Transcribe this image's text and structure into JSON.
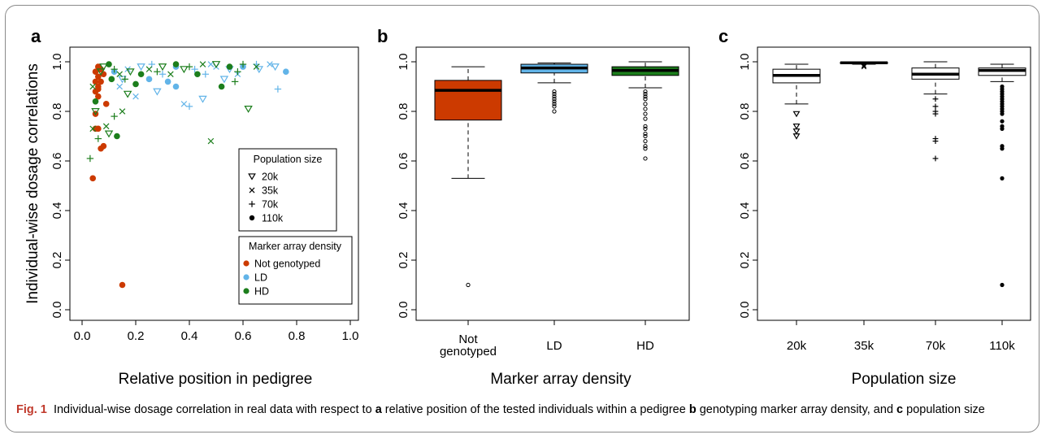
{
  "caption": {
    "label": "Fig. 1",
    "t0": "Individual-wise dosage correlation in real data with respect to ",
    "l1": "a",
    "t1": " relative position of the tested individuals within a pedigree ",
    "l2": "b",
    "t2": " genotyping marker array density, and ",
    "l3": "c",
    "t3": " population size"
  },
  "colors": {
    "not_genotyped": "#cc3a00",
    "ld": "#62b4e8",
    "hd": "#1c7e1c",
    "caption_label": "#c0392b"
  },
  "chart_data": [
    {
      "panel": "a",
      "type": "scatter",
      "xlabel": "Relative position in pedigree",
      "ylabel": "Individual-wise dosage correlations",
      "xlim": [
        0,
        1.0
      ],
      "ylim": [
        0,
        1.0
      ],
      "xticks": [
        "0.0",
        "0.2",
        "0.4",
        "0.6",
        "0.8",
        "1.0"
      ],
      "yticks": [
        "0.0",
        "0.2",
        "0.4",
        "0.6",
        "0.8",
        "1.0"
      ],
      "legend_population": {
        "title": "Population size",
        "entries": [
          {
            "label": "20k",
            "marker": "triangle"
          },
          {
            "label": "35k",
            "marker": "x"
          },
          {
            "label": "70k",
            "marker": "plus"
          },
          {
            "label": "110k",
            "marker": "dot"
          }
        ]
      },
      "legend_density": {
        "title": "Marker array density",
        "entries": [
          {
            "label": "Not genotyped",
            "color": "#cc3a00"
          },
          {
            "label": "LD",
            "color": "#62b4e8"
          },
          {
            "label": "HD",
            "color": "#1c7e1c"
          }
        ]
      },
      "series": [
        {
          "density": "Not genotyped",
          "points": [
            [
              0.15,
              0.1
            ],
            [
              0.04,
              0.53
            ],
            [
              0.05,
              0.73
            ],
            [
              0.06,
              0.73
            ],
            [
              0.07,
              0.65
            ],
            [
              0.08,
              0.66
            ],
            [
              0.05,
              0.79
            ],
            [
              0.09,
              0.83
            ],
            [
              0.06,
              0.86
            ],
            [
              0.05,
              0.88
            ],
            [
              0.06,
              0.9
            ],
            [
              0.07,
              0.92
            ],
            [
              0.06,
              0.94
            ],
            [
              0.05,
              0.96
            ],
            [
              0.07,
              0.97
            ],
            [
              0.06,
              0.98
            ],
            [
              0.08,
              0.95
            ],
            [
              0.05,
              0.92
            ],
            [
              0.06,
              0.89
            ]
          ]
        },
        {
          "density": "LD",
          "points": [
            [
              0.2,
              0.86
            ],
            [
              0.28,
              0.88
            ],
            [
              0.35,
              0.9
            ],
            [
              0.4,
              0.82
            ],
            [
              0.38,
              0.83
            ],
            [
              0.45,
              0.85
            ],
            [
              0.25,
              0.93
            ],
            [
              0.3,
              0.95
            ],
            [
              0.17,
              0.97
            ],
            [
              0.22,
              0.98
            ],
            [
              0.35,
              0.98
            ],
            [
              0.42,
              0.97
            ],
            [
              0.5,
              0.98
            ],
            [
              0.55,
              0.97
            ],
            [
              0.6,
              0.98
            ],
            [
              0.65,
              0.99
            ],
            [
              0.7,
              0.99
            ],
            [
              0.72,
              0.98
            ],
            [
              0.76,
              0.96
            ],
            [
              0.73,
              0.89
            ],
            [
              0.14,
              0.9
            ],
            [
              0.15,
              0.93
            ],
            [
              0.32,
              0.92
            ],
            [
              0.46,
              0.95
            ],
            [
              0.58,
              0.95
            ],
            [
              0.66,
              0.97
            ],
            [
              0.12,
              0.96
            ],
            [
              0.26,
              0.99
            ],
            [
              0.48,
              0.99
            ],
            [
              0.53,
              0.93
            ]
          ]
        },
        {
          "density": "HD",
          "points": [
            [
              0.03,
              0.61
            ],
            [
              0.04,
              0.73
            ],
            [
              0.05,
              0.8
            ],
            [
              0.05,
              0.84
            ],
            [
              0.06,
              0.69
            ],
            [
              0.09,
              0.74
            ],
            [
              0.1,
              0.71
            ],
            [
              0.13,
              0.7
            ],
            [
              0.12,
              0.78
            ],
            [
              0.15,
              0.8
            ],
            [
              0.17,
              0.87
            ],
            [
              0.2,
              0.91
            ],
            [
              0.16,
              0.93
            ],
            [
              0.48,
              0.68
            ],
            [
              0.62,
              0.81
            ],
            [
              0.52,
              0.9
            ],
            [
              0.57,
              0.92
            ],
            [
              0.25,
              0.97
            ],
            [
              0.3,
              0.98
            ],
            [
              0.35,
              0.99
            ],
            [
              0.4,
              0.98
            ],
            [
              0.45,
              0.99
            ],
            [
              0.5,
              0.99
            ],
            [
              0.55,
              0.98
            ],
            [
              0.6,
              0.99
            ],
            [
              0.65,
              0.98
            ],
            [
              0.08,
              0.98
            ],
            [
              0.1,
              0.99
            ],
            [
              0.12,
              0.97
            ],
            [
              0.14,
              0.95
            ],
            [
              0.18,
              0.96
            ],
            [
              0.22,
              0.95
            ],
            [
              0.28,
              0.96
            ],
            [
              0.33,
              0.95
            ],
            [
              0.38,
              0.97
            ],
            [
              0.43,
              0.95
            ],
            [
              0.58,
              0.96
            ],
            [
              0.04,
              0.9
            ],
            [
              0.07,
              0.96
            ],
            [
              0.11,
              0.93
            ]
          ]
        }
      ]
    },
    {
      "panel": "b",
      "type": "box",
      "xlabel": "Marker array density",
      "ylim": [
        0,
        1.0
      ],
      "yticks": [
        "0.0",
        "0.2",
        "0.4",
        "0.6",
        "0.8",
        "1.0"
      ],
      "categories": [
        "Not\ngenotyped",
        "LD",
        "HD"
      ],
      "boxes": [
        {
          "name": "Not genotyped",
          "color": "#cc3a00",
          "whisker_low": 0.53,
          "q1": 0.765,
          "median": 0.885,
          "q3": 0.925,
          "whisker_high": 0.98,
          "outliers": [
            0.1
          ]
        },
        {
          "name": "LD",
          "color": "#62b4e8",
          "whisker_low": 0.915,
          "q1": 0.955,
          "median": 0.975,
          "q3": 0.99,
          "whisker_high": 0.995,
          "outliers": [
            0.88,
            0.87,
            0.86,
            0.85,
            0.84,
            0.83,
            0.82,
            0.8
          ]
        },
        {
          "name": "HD",
          "color": "#1c7e1c",
          "whisker_low": 0.895,
          "q1": 0.945,
          "median": 0.965,
          "q3": 0.98,
          "whisker_high": 1.0,
          "outliers": [
            0.88,
            0.87,
            0.86,
            0.85,
            0.83,
            0.81,
            0.79,
            0.77,
            0.74,
            0.73,
            0.71,
            0.7,
            0.68,
            0.66,
            0.65,
            0.61
          ]
        }
      ]
    },
    {
      "panel": "c",
      "type": "box",
      "xlabel": "Population size",
      "ylim": [
        0,
        1.0
      ],
      "yticks": [
        "0.0",
        "0.2",
        "0.4",
        "0.6",
        "0.8",
        "1.0"
      ],
      "categories": [
        "20k",
        "35k",
        "70k",
        "110k"
      ],
      "boxes": [
        {
          "name": "20k",
          "marker": "triangle",
          "whisker_low": 0.83,
          "q1": 0.915,
          "median": 0.945,
          "q3": 0.97,
          "whisker_high": 0.99,
          "outliers": [
            0.79,
            0.74,
            0.72,
            0.7
          ]
        },
        {
          "name": "35k",
          "marker": "x",
          "whisker_low": 0.99,
          "q1": 0.993,
          "median": 0.996,
          "q3": 0.998,
          "whisker_high": 1.0,
          "outliers": [
            0.98,
            0.985
          ]
        },
        {
          "name": "70k",
          "marker": "plus",
          "whisker_low": 0.87,
          "q1": 0.93,
          "median": 0.95,
          "q3": 0.975,
          "whisker_high": 1.0,
          "outliers": [
            0.85,
            0.82,
            0.8,
            0.79,
            0.69,
            0.68,
            0.61
          ]
        },
        {
          "name": "110k",
          "marker": "dot",
          "whisker_low": 0.92,
          "q1": 0.945,
          "median": 0.965,
          "q3": 0.975,
          "whisker_high": 0.99,
          "outliers": [
            0.9,
            0.89,
            0.88,
            0.87,
            0.86,
            0.85,
            0.84,
            0.83,
            0.82,
            0.81,
            0.8,
            0.79,
            0.76,
            0.74,
            0.73,
            0.66,
            0.65,
            0.53,
            0.1
          ]
        }
      ]
    }
  ]
}
